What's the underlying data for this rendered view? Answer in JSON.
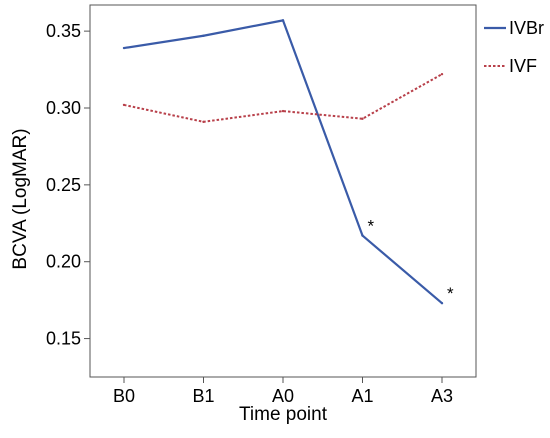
{
  "chart_data": {
    "type": "line",
    "title": "",
    "xlabel": "Time point",
    "ylabel": "BCVA (LogMAR)",
    "categories": [
      "B0",
      "B1",
      "A0",
      "A1",
      "A3"
    ],
    "ylim": [
      0.125,
      0.367
    ],
    "yticks": [
      0.15,
      0.2,
      0.25,
      0.3,
      0.35
    ],
    "ytick_labels": [
      "0.15",
      "0.20",
      "0.25",
      "0.30",
      "0.35"
    ],
    "grid": false,
    "legend_position": "top-right outside",
    "series": [
      {
        "name": "IVBr",
        "values": [
          0.339,
          0.347,
          0.357,
          0.217,
          0.173
        ],
        "color": "#3a5ba8",
        "line_style": "solid"
      },
      {
        "name": "IVF",
        "values": [
          0.302,
          0.291,
          0.298,
          0.293,
          0.322
        ],
        "color": "#b8404a",
        "line_style": "dotted"
      }
    ],
    "annotations": [
      {
        "text": "*",
        "series": "IVBr",
        "category": "A1",
        "value": 0.217
      },
      {
        "text": "*",
        "series": "IVBr",
        "category": "A3",
        "value": 0.173
      }
    ]
  }
}
